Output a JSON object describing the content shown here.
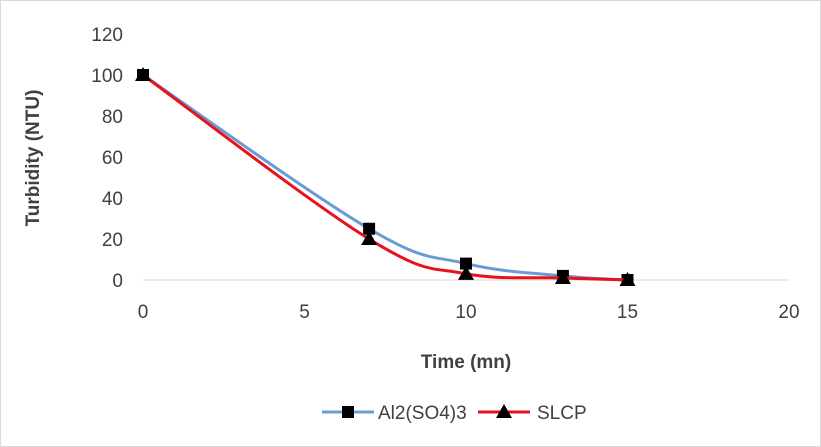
{
  "chart_data": {
    "type": "line",
    "xlabel": "Time (mn)",
    "ylabel": "Turbidity (NTU)",
    "xlim": [
      0,
      20
    ],
    "ylim": [
      0,
      120
    ],
    "x_ticks": [
      0,
      5,
      10,
      15,
      20
    ],
    "y_ticks": [
      0,
      20,
      40,
      60,
      80,
      100,
      120
    ],
    "grid": false,
    "legend_position": "bottom",
    "series": [
      {
        "name": "Al2(SO4)3",
        "color": "#6a9bd4",
        "marker": "square",
        "x": [
          0,
          7,
          10,
          13,
          15
        ],
        "y": [
          100,
          25,
          8,
          2,
          0
        ]
      },
      {
        "name": "SLCP",
        "color": "#e8121c",
        "marker": "triangle",
        "x": [
          0,
          7,
          10,
          13,
          15
        ],
        "y": [
          100,
          20,
          3,
          1,
          0
        ]
      }
    ]
  }
}
